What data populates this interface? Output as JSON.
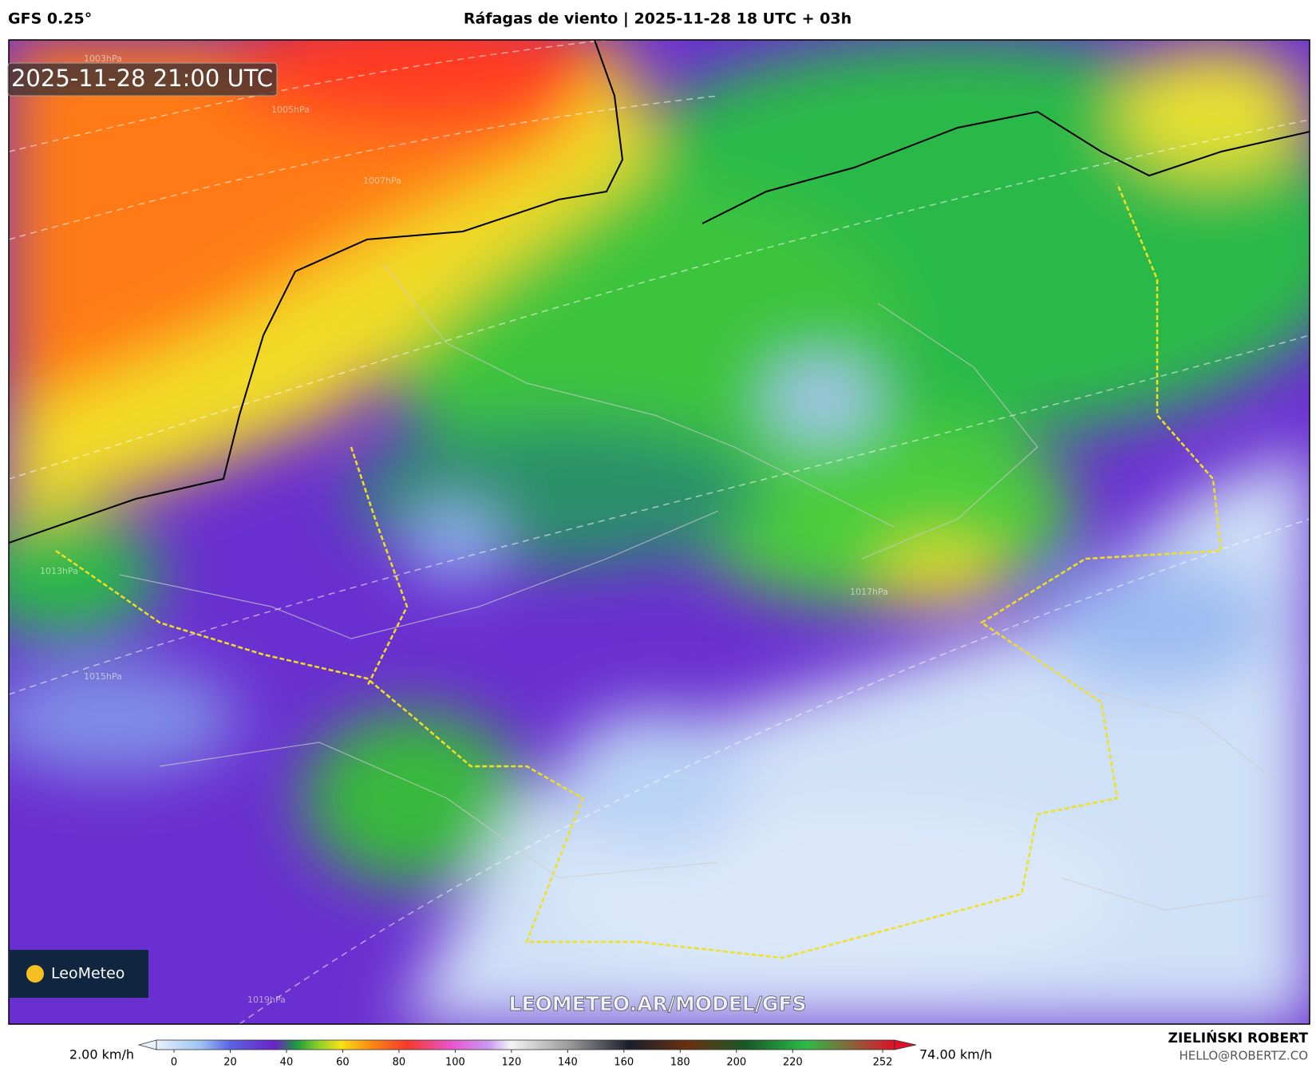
{
  "header": {
    "model": "GFS 0.25°",
    "title": "Ráfagas de viento | 2025-11-28 18 UTC + 03h"
  },
  "map": {
    "timestamp": "2025-11-28 21:00 UTC",
    "logo": "LeoMeteo",
    "watermark": "LEOMETEO.AR/MODEL/GFS",
    "isobars": [
      "1003hPa",
      "1005hPa",
      "1007hPa",
      "1013hPa",
      "1015hPa",
      "1017hPa",
      "1019hPa"
    ]
  },
  "colorbar": {
    "min_label": "2.00 km/h",
    "max_label": "74.00 km/h",
    "ticks": [
      0,
      20,
      40,
      60,
      80,
      100,
      120,
      140,
      160,
      180,
      200,
      220,
      252
    ]
  },
  "footer": {
    "author": "ZIELIŃSKI ROBERT",
    "email": "HELLO@ROBERTZ.CO"
  }
}
